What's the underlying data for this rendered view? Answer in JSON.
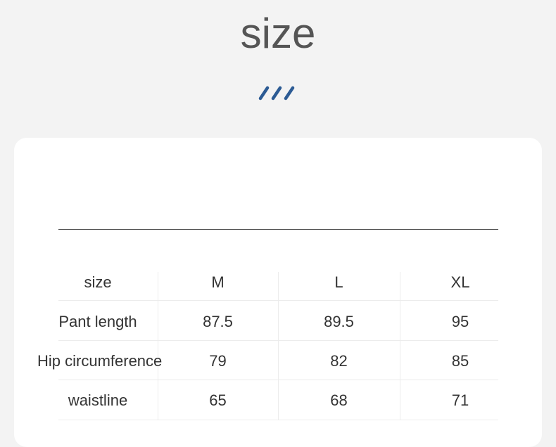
{
  "header": {
    "title": "size",
    "accent_color": "#2c5b94",
    "decoration_icon": "triple-slash-icon"
  },
  "table": {
    "columns": [
      "size",
      "M",
      "L",
      "XL"
    ],
    "rows": [
      [
        "Pant length",
        "87.5",
        "89.5",
        "95"
      ],
      [
        "Hip circumference",
        "79",
        "82",
        "85"
      ],
      [
        "waistline",
        "65",
        "68",
        "71"
      ]
    ]
  }
}
